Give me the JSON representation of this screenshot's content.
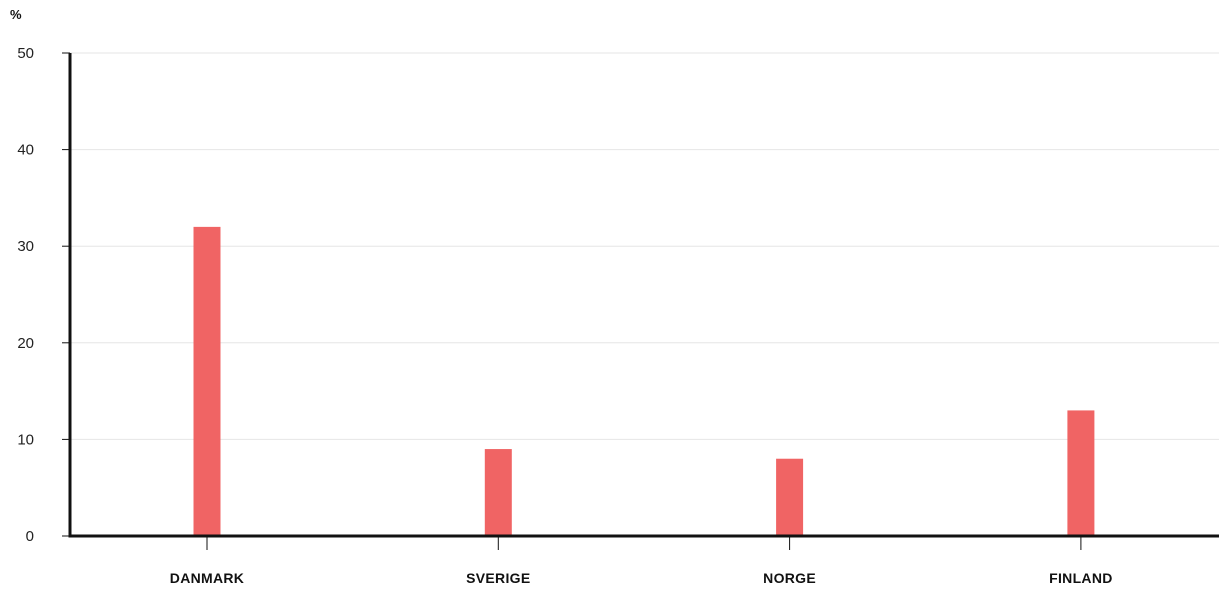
{
  "chart_data": {
    "type": "bar",
    "title": "",
    "xlabel": "",
    "ylabel": "%",
    "categories": [
      "DANMARK",
      "SVERIGE",
      "NORGE",
      "FINLAND"
    ],
    "values": [
      32,
      9,
      8,
      13
    ],
    "ylim": [
      0,
      50
    ],
    "yticks": [
      0,
      10,
      20,
      30,
      40,
      50
    ],
    "grid": true,
    "legend": "none",
    "colors": {
      "bar": "#f06464",
      "axis": "#111111",
      "grid": "#e6e6e6"
    }
  }
}
